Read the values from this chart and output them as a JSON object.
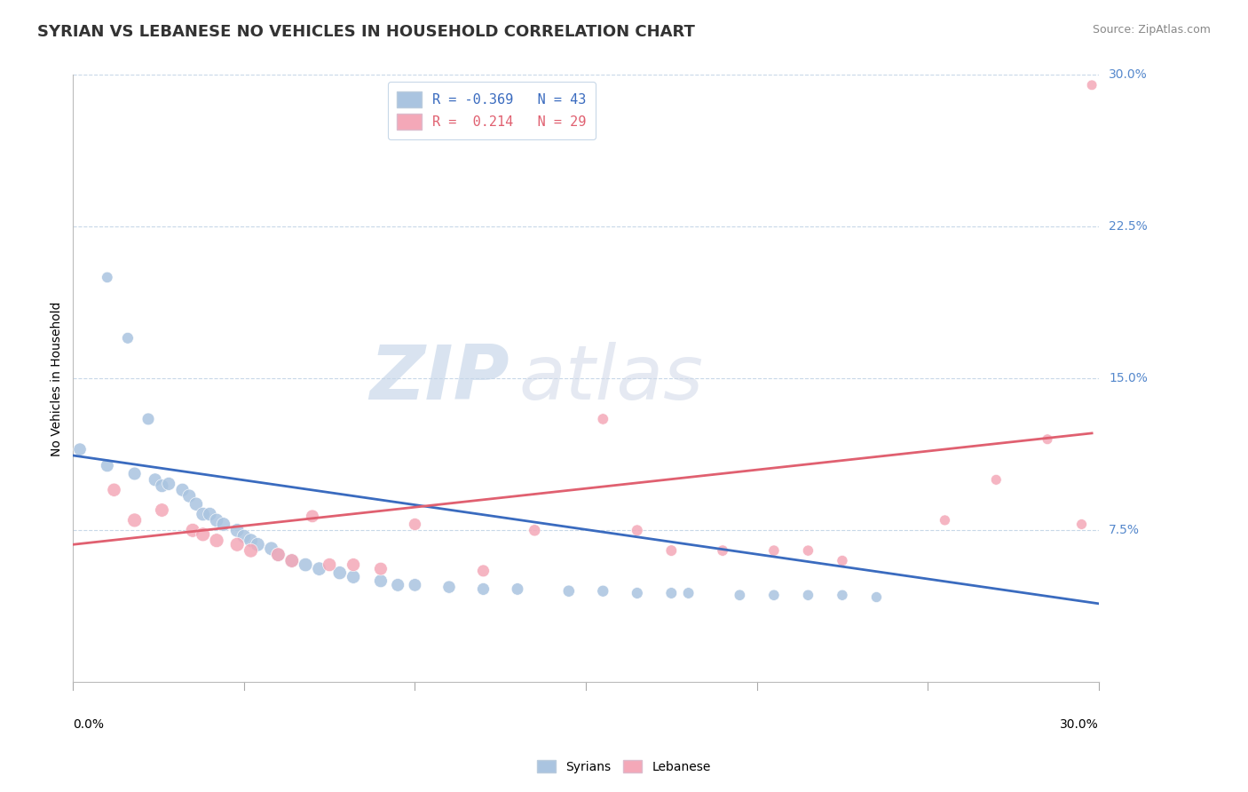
{
  "title": "SYRIAN VS LEBANESE NO VEHICLES IN HOUSEHOLD CORRELATION CHART",
  "source": "Source: ZipAtlas.com",
  "ylabel": "No Vehicles in Household",
  "right_axis_labels": [
    "30.0%",
    "22.5%",
    "15.0%",
    "7.5%"
  ],
  "legend_syrian_r": "-0.369",
  "legend_syrian_n": "43",
  "legend_lebanese_r": "0.214",
  "legend_lebanese_n": "29",
  "syrian_color": "#aac4e0",
  "lebanese_color": "#f4a8b8",
  "syrian_line_color": "#3a6bbf",
  "lebanese_line_color": "#e06070",
  "watermark_zip": "ZIP",
  "watermark_atlas": "atlas",
  "background_color": "#ffffff",
  "grid_color": "#c8d8e8",
  "axis_label_color": "#5588cc",
  "syrian_points": [
    [
      0.002,
      0.115
    ],
    [
      0.01,
      0.2
    ],
    [
      0.016,
      0.17
    ],
    [
      0.022,
      0.13
    ],
    [
      0.01,
      0.107
    ],
    [
      0.018,
      0.103
    ],
    [
      0.024,
      0.1
    ],
    [
      0.026,
      0.097
    ],
    [
      0.028,
      0.098
    ],
    [
      0.032,
      0.095
    ],
    [
      0.034,
      0.092
    ],
    [
      0.036,
      0.088
    ],
    [
      0.038,
      0.083
    ],
    [
      0.04,
      0.083
    ],
    [
      0.042,
      0.08
    ],
    [
      0.044,
      0.078
    ],
    [
      0.048,
      0.075
    ],
    [
      0.05,
      0.072
    ],
    [
      0.052,
      0.07
    ],
    [
      0.054,
      0.068
    ],
    [
      0.058,
      0.066
    ],
    [
      0.06,
      0.063
    ],
    [
      0.064,
      0.06
    ],
    [
      0.068,
      0.058
    ],
    [
      0.072,
      0.056
    ],
    [
      0.078,
      0.054
    ],
    [
      0.082,
      0.052
    ],
    [
      0.09,
      0.05
    ],
    [
      0.095,
      0.048
    ],
    [
      0.1,
      0.048
    ],
    [
      0.11,
      0.047
    ],
    [
      0.12,
      0.046
    ],
    [
      0.13,
      0.046
    ],
    [
      0.145,
      0.045
    ],
    [
      0.155,
      0.045
    ],
    [
      0.165,
      0.044
    ],
    [
      0.175,
      0.044
    ],
    [
      0.18,
      0.044
    ],
    [
      0.195,
      0.043
    ],
    [
      0.205,
      0.043
    ],
    [
      0.215,
      0.043
    ],
    [
      0.225,
      0.043
    ],
    [
      0.235,
      0.042
    ]
  ],
  "lebanese_points": [
    [
      0.012,
      0.095
    ],
    [
      0.018,
      0.08
    ],
    [
      0.026,
      0.085
    ],
    [
      0.035,
      0.075
    ],
    [
      0.038,
      0.073
    ],
    [
      0.042,
      0.07
    ],
    [
      0.048,
      0.068
    ],
    [
      0.052,
      0.065
    ],
    [
      0.06,
      0.063
    ],
    [
      0.064,
      0.06
    ],
    [
      0.07,
      0.082
    ],
    [
      0.075,
      0.058
    ],
    [
      0.082,
      0.058
    ],
    [
      0.09,
      0.056
    ],
    [
      0.1,
      0.078
    ],
    [
      0.12,
      0.055
    ],
    [
      0.135,
      0.075
    ],
    [
      0.155,
      0.13
    ],
    [
      0.165,
      0.075
    ],
    [
      0.175,
      0.065
    ],
    [
      0.19,
      0.065
    ],
    [
      0.205,
      0.065
    ],
    [
      0.215,
      0.065
    ],
    [
      0.225,
      0.06
    ],
    [
      0.255,
      0.08
    ],
    [
      0.27,
      0.1
    ],
    [
      0.285,
      0.12
    ],
    [
      0.295,
      0.078
    ],
    [
      0.298,
      0.295
    ]
  ],
  "syrian_line": [
    [
      0.0,
      0.112
    ],
    [
      0.5,
      -0.01
    ]
  ],
  "lebanese_line": [
    [
      0.0,
      0.068
    ],
    [
      0.298,
      0.123
    ]
  ],
  "xlim": [
    0.0,
    0.3
  ],
  "ylim": [
    0.0,
    0.3
  ],
  "title_fontsize": 13,
  "label_fontsize": 10,
  "tick_fontsize": 10,
  "legend_fontsize": 11
}
